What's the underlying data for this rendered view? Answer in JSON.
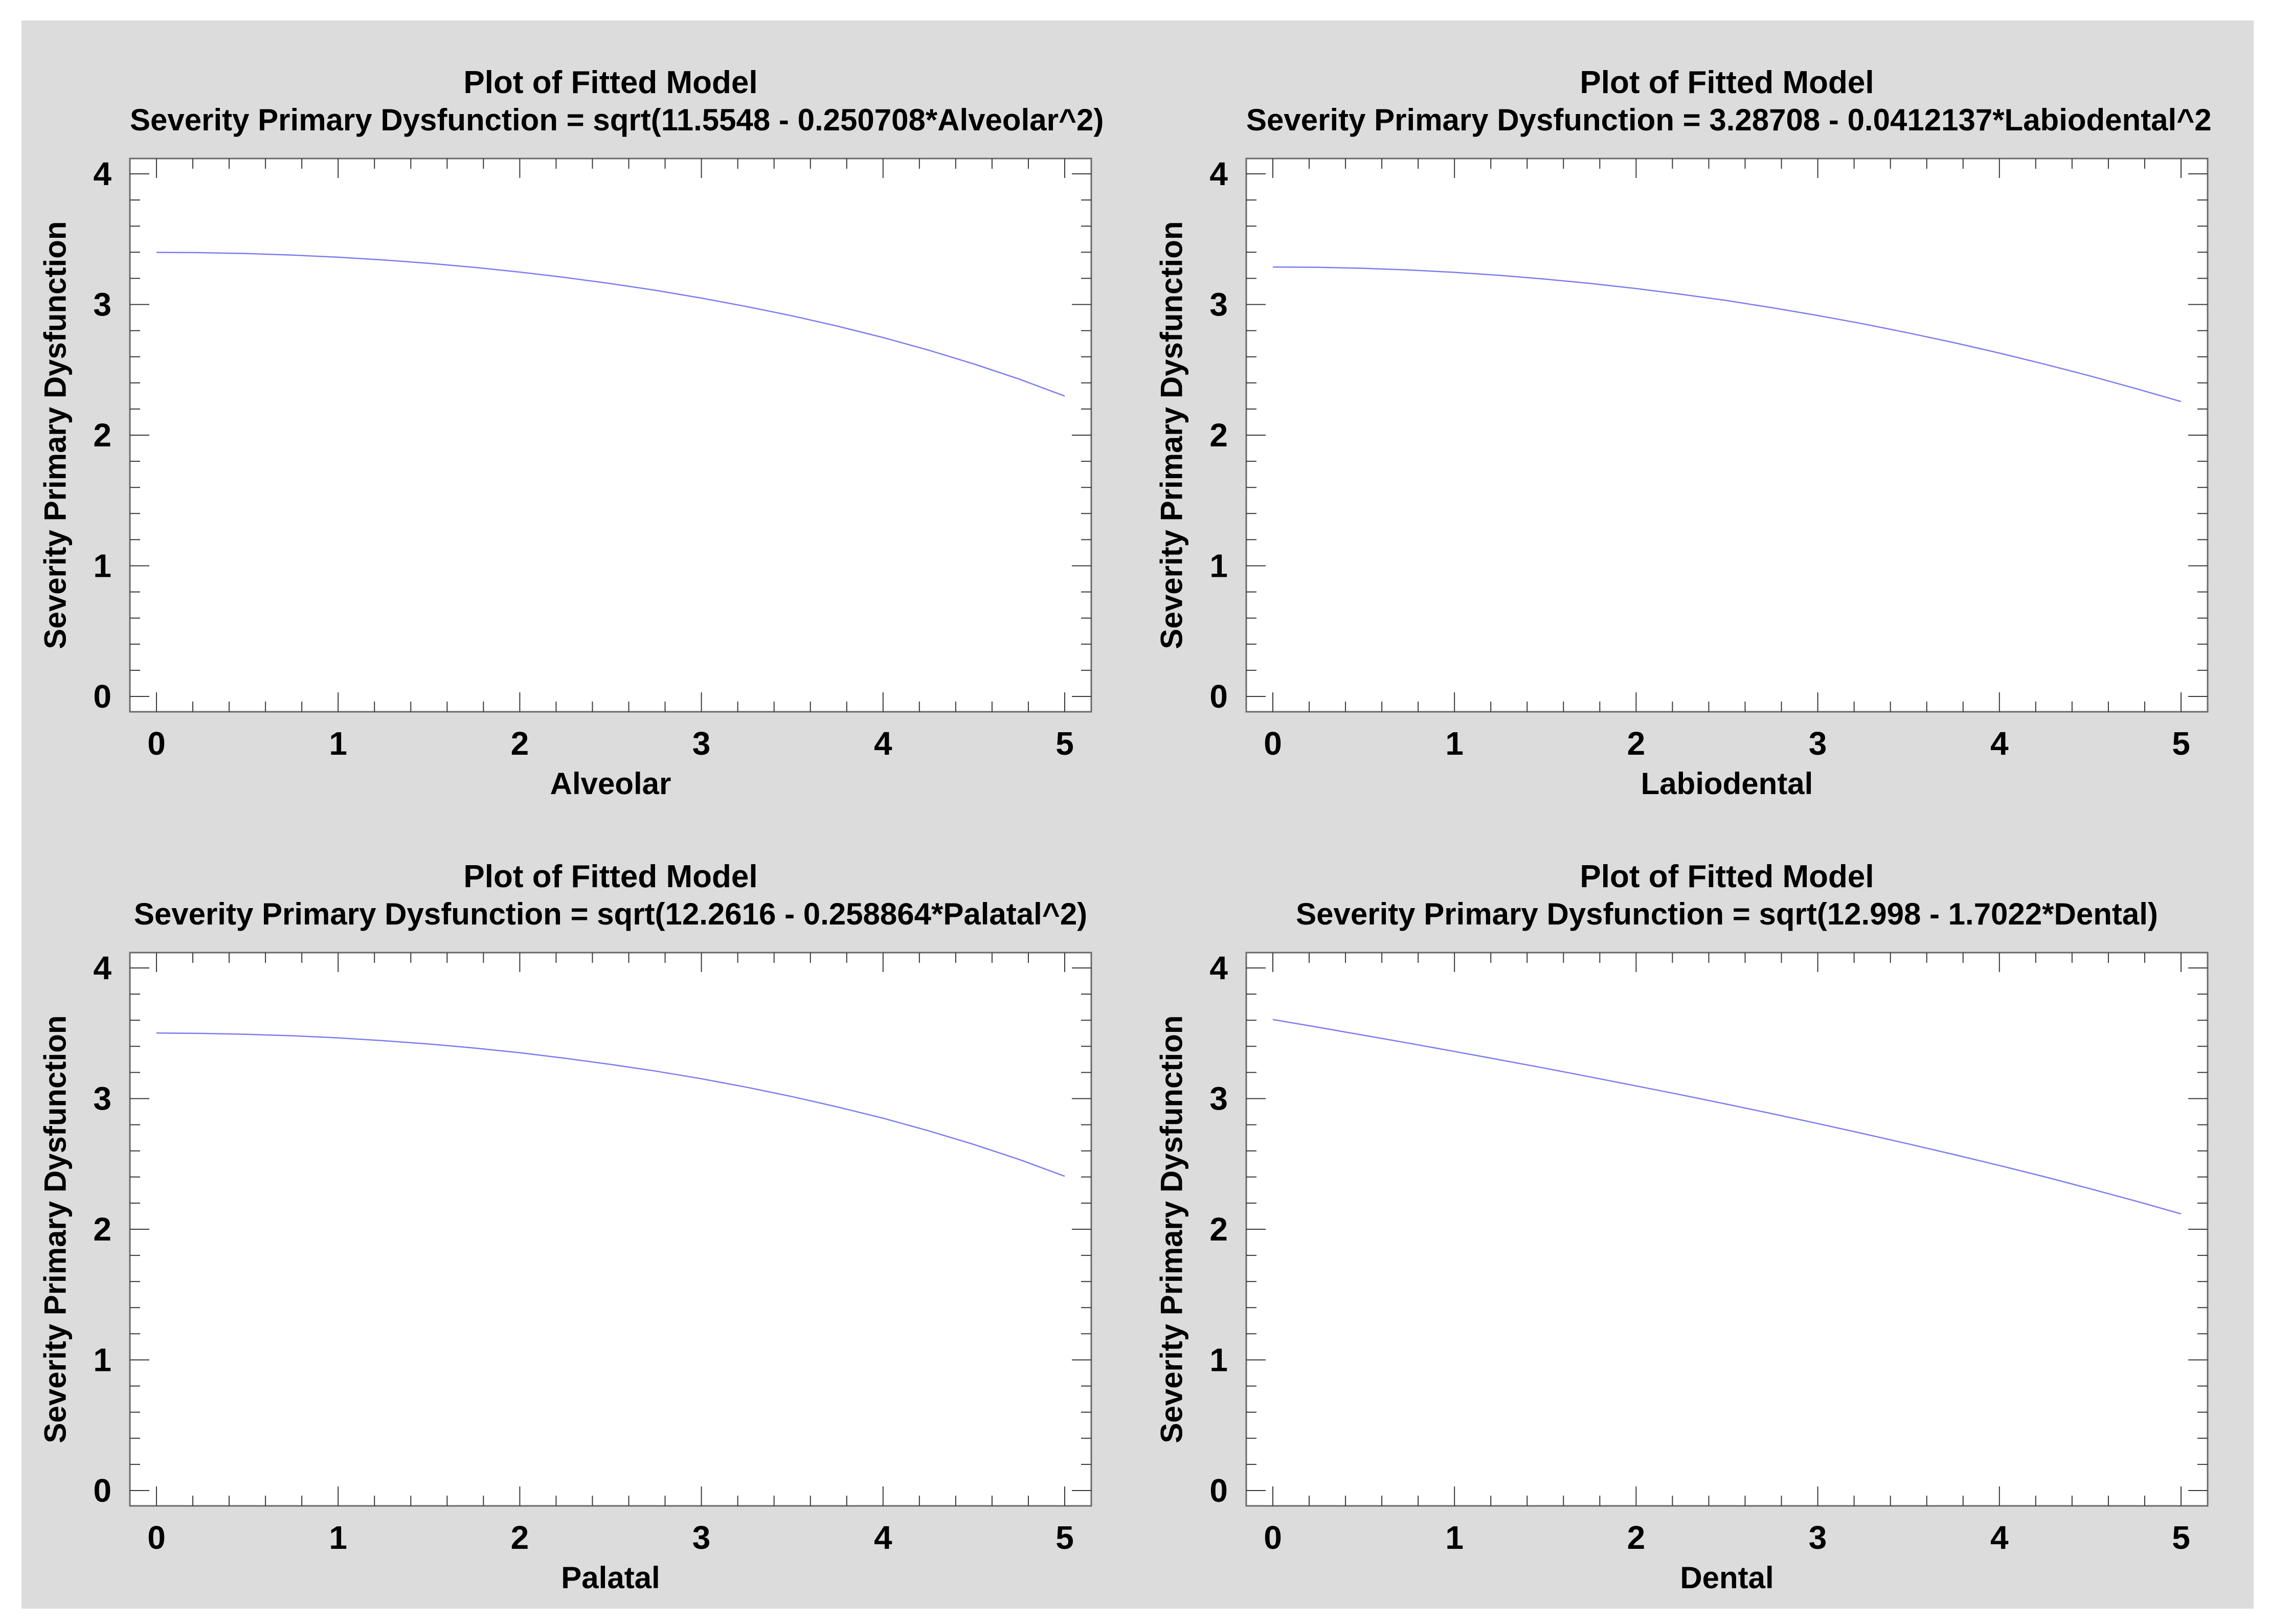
{
  "page": {
    "background_color": "#ffffff",
    "canvas_color": "#dcdcdc",
    "frame_color": "#6a6a6a",
    "tick_color": "#383838",
    "text_color": "#000000"
  },
  "chart_data": [
    {
      "type": "line",
      "title": "Plot of Fitted Model",
      "subtitle": "Severity Primary Dysfunction = sqrt(11.5548 - 0.250708*Alveolar^2)",
      "xlabel": "Alveolar",
      "ylabel": "Severity Primary Dysfunction",
      "xlim": [
        0,
        5
      ],
      "ylim": [
        0,
        4
      ],
      "x_ticks": [
        0,
        1,
        2,
        3,
        4,
        5
      ],
      "y_ticks": [
        0,
        1,
        2,
        3,
        4
      ],
      "minor_tick_step": 0.2,
      "grid": false,
      "legend": "none",
      "line_color": "#7b7bf2",
      "x": [
        0,
        0.25,
        0.5,
        0.75,
        1,
        1.25,
        1.5,
        1.75,
        2,
        2.25,
        2.5,
        2.75,
        3,
        3.25,
        3.5,
        3.75,
        4,
        4.25,
        4.5,
        4.75,
        5
      ],
      "y": [
        3.399,
        3.397,
        3.39,
        3.378,
        3.362,
        3.341,
        3.315,
        3.284,
        3.248,
        3.207,
        3.16,
        3.108,
        3.049,
        2.984,
        2.913,
        2.834,
        2.747,
        2.651,
        2.545,
        2.429,
        2.299
      ]
    },
    {
      "type": "line",
      "title": "Plot of Fitted Model",
      "subtitle": "Severity Primary Dysfunction = 3.28708 - 0.0412137*Labiodental^2",
      "xlabel": "Labiodental",
      "ylabel": "Severity Primary Dysfunction",
      "xlim": [
        0,
        5
      ],
      "ylim": [
        0,
        4
      ],
      "x_ticks": [
        0,
        1,
        2,
        3,
        4,
        5
      ],
      "y_ticks": [
        0,
        1,
        2,
        3,
        4
      ],
      "minor_tick_step": 0.2,
      "grid": false,
      "legend": "none",
      "line_color": "#7b7bf2",
      "x": [
        0,
        0.25,
        0.5,
        0.75,
        1,
        1.25,
        1.5,
        1.75,
        2,
        2.25,
        2.5,
        2.75,
        3,
        3.25,
        3.5,
        3.75,
        4,
        4.25,
        4.5,
        4.75,
        5
      ],
      "y": [
        3.287,
        3.285,
        3.277,
        3.264,
        3.246,
        3.223,
        3.194,
        3.161,
        3.122,
        3.078,
        3.03,
        2.975,
        2.916,
        2.852,
        2.782,
        2.708,
        2.628,
        2.543,
        2.453,
        2.357,
        2.257
      ]
    },
    {
      "type": "line",
      "title": "Plot of Fitted Model",
      "subtitle": "Severity Primary Dysfunction = sqrt(12.2616 - 0.258864*Palatal^2)",
      "xlabel": "Palatal",
      "ylabel": "Severity Primary Dysfunction",
      "xlim": [
        0,
        5
      ],
      "ylim": [
        0,
        4
      ],
      "x_ticks": [
        0,
        1,
        2,
        3,
        4,
        5
      ],
      "y_ticks": [
        0,
        1,
        2,
        3,
        4
      ],
      "minor_tick_step": 0.2,
      "grid": false,
      "legend": "none",
      "line_color": "#7b7bf2",
      "x": [
        0,
        0.25,
        0.5,
        0.75,
        1,
        1.25,
        1.5,
        1.75,
        2,
        2.25,
        2.5,
        2.75,
        3,
        3.25,
        3.5,
        3.75,
        4,
        4.25,
        4.5,
        4.75,
        5
      ],
      "y": [
        3.502,
        3.499,
        3.492,
        3.481,
        3.465,
        3.443,
        3.418,
        3.387,
        3.351,
        3.309,
        3.262,
        3.21,
        3.152,
        3.087,
        3.015,
        2.936,
        2.85,
        2.754,
        2.649,
        2.534,
        2.406
      ]
    },
    {
      "type": "line",
      "title": "Plot of Fitted Model",
      "subtitle": "Severity Primary Dysfunction = sqrt(12.998 - 1.7022*Dental)",
      "xlabel": "Dental",
      "ylabel": "Severity Primary Dysfunction",
      "xlim": [
        0,
        5
      ],
      "ylim": [
        0,
        4
      ],
      "x_ticks": [
        0,
        1,
        2,
        3,
        4,
        5
      ],
      "y_ticks": [
        0,
        1,
        2,
        3,
        4
      ],
      "minor_tick_step": 0.2,
      "grid": false,
      "legend": "none",
      "line_color": "#7b7bf2",
      "x": [
        0,
        0.25,
        0.5,
        0.75,
        1,
        1.25,
        1.5,
        1.75,
        2,
        2.25,
        2.5,
        2.75,
        3,
        3.25,
        3.5,
        3.75,
        4,
        4.25,
        4.5,
        4.75,
        5
      ],
      "y": [
        3.605,
        3.546,
        3.485,
        3.424,
        3.361,
        3.297,
        3.232,
        3.165,
        3.097,
        3.028,
        2.957,
        2.884,
        2.809,
        2.732,
        2.653,
        2.572,
        2.488,
        2.401,
        2.31,
        2.216,
        2.118
      ]
    }
  ]
}
